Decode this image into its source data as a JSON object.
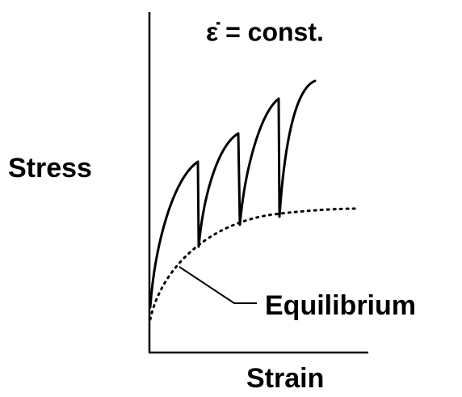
{
  "title": "ε̇ = const.",
  "y_axis_label": "Stress",
  "x_axis_label": "Strain",
  "annotation": "Equilibrium"
}
